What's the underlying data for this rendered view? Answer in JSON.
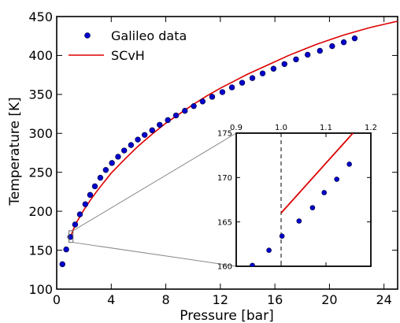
{
  "chart_data": [
    {
      "type": "scatter",
      "role": "main",
      "xlabel": "Pressure [bar]",
      "ylabel": "Temperature [K]",
      "xlim": [
        0,
        25
      ],
      "ylim": [
        100,
        450
      ],
      "xticks": [
        0,
        4,
        8,
        12,
        16,
        20,
        24
      ],
      "yticks": [
        100,
        150,
        200,
        250,
        300,
        350,
        400,
        450
      ],
      "legend_position": "top-left",
      "series": [
        {
          "name": "Galileo data",
          "kind": "points",
          "color": "#0000cc",
          "x": [
            0.42,
            0.7,
            1.0,
            1.35,
            1.7,
            2.1,
            2.45,
            2.8,
            3.2,
            3.6,
            4.05,
            4.5,
            4.95,
            5.45,
            5.95,
            6.45,
            7.0,
            7.55,
            8.15,
            8.75,
            9.4,
            10.05,
            10.7,
            11.4,
            12.15,
            12.85,
            13.6,
            14.35,
            15.1,
            15.9,
            16.7,
            17.55,
            18.4,
            19.3,
            20.2,
            21.05,
            21.85
          ],
          "y": [
            132,
            151,
            167,
            183,
            196,
            209,
            221,
            232,
            243,
            253,
            262,
            270,
            278,
            285,
            292,
            298,
            304,
            311,
            317,
            323,
            329,
            335,
            341,
            347,
            353,
            359,
            365,
            371,
            377,
            383,
            389,
            395,
            401,
            406,
            412,
            417,
            422
          ]
        },
        {
          "name": "SCvH",
          "kind": "line",
          "color": "#dd0000",
          "x": [
            1.0,
            1.2,
            1.5,
            2,
            2.5,
            3,
            4,
            5,
            6,
            7,
            8,
            9,
            10,
            11,
            12,
            13,
            14,
            15,
            16,
            17,
            18,
            19,
            20,
            21,
            22,
            23,
            24,
            25
          ],
          "y": [
            166,
            176,
            187,
            202,
            215,
            227,
            249,
            267,
            284,
            299,
            313,
            325,
            337,
            348,
            358,
            367,
            376,
            384,
            392,
            400,
            407,
            414,
            420,
            426,
            431,
            436,
            440,
            444
          ]
        }
      ]
    },
    {
      "type": "scatter",
      "role": "inset",
      "xlim": [
        0.9,
        1.2
      ],
      "ylim": [
        160,
        175
      ],
      "xticks": [
        0.9,
        1.0,
        1.1,
        1.2
      ],
      "yticks": [
        160,
        165,
        170,
        175
      ],
      "reference_line_x": 1.0,
      "series": [
        {
          "name": "Galileo data",
          "kind": "points",
          "color": "#0000cc",
          "x": [
            0.936,
            0.973,
            1.002,
            1.04,
            1.07,
            1.096,
            1.124,
            1.152
          ],
          "y": [
            160.1,
            161.8,
            163.4,
            165.1,
            166.6,
            168.3,
            169.8,
            171.5
          ]
        },
        {
          "name": "SCvH",
          "kind": "line",
          "color": "#dd0000",
          "x": [
            1.0,
            1.16
          ],
          "y": [
            166.0,
            175.0
          ]
        }
      ]
    }
  ]
}
